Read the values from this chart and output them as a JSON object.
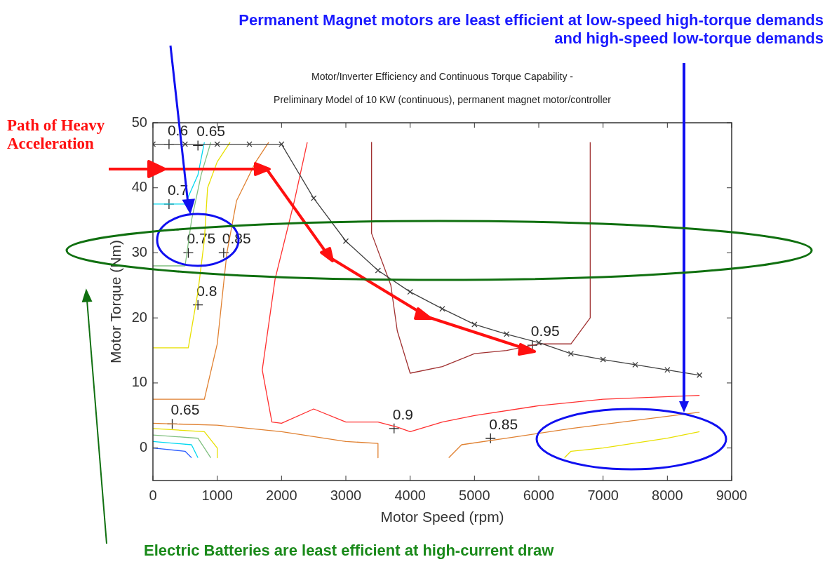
{
  "chart_data": {
    "type": "line",
    "title": "Motor/Inverter Efficiency and Continuous Torque Capability -\nPreliminary Model of 10 KW (continuous), permanent magnet motor/controller",
    "xlabel": "Motor Speed (rpm)",
    "ylabel": "Motor Torque (Nm)",
    "xlim": [
      0,
      9000
    ],
    "xticks": [
      0,
      1000,
      2000,
      3000,
      4000,
      5000,
      6000,
      7000,
      8000,
      9000
    ],
    "ylim": [
      -5,
      50
    ],
    "yticks": [
      0,
      10,
      20,
      30,
      40,
      50
    ],
    "grid": false,
    "legend": false,
    "series": [
      {
        "color": "#404040",
        "marker": "cross",
        "x": [
          0,
          500,
          1000,
          1500,
          2000,
          2500,
          3000,
          3500,
          4000,
          4500,
          5000,
          5500,
          6000,
          6500,
          7000,
          7500,
          8000,
          8500
        ],
        "values": [
          46.7,
          46.7,
          46.7,
          46.7,
          46.7,
          38.4,
          31.8,
          27.3,
          24,
          21.4,
          19,
          17.5,
          16.2,
          14.5,
          13.6,
          12.8,
          12,
          11.2
        ]
      },
      {
        "color": "#00d8f0",
        "x": [
          0,
          500,
          700,
          800
        ],
        "values": [
          37.5,
          37.5,
          42,
          47
        ]
      },
      {
        "color": "#80c080",
        "x": [
          0,
          500,
          600,
          750,
          900
        ],
        "values": [
          28,
          28,
          35,
          42,
          47
        ]
      },
      {
        "color": "#e8e000",
        "x": [
          0,
          550,
          700,
          800,
          850,
          1000,
          1200
        ],
        "values": [
          15.4,
          15.4,
          24,
          32,
          40,
          44,
          47
        ]
      },
      {
        "color": "#e08030",
        "x": [
          0,
          800,
          1000,
          1150,
          1300,
          1600,
          1800
        ],
        "values": [
          7.5,
          7.5,
          16,
          30,
          38,
          44,
          47
        ]
      },
      {
        "color": "#ff3030",
        "x": [
          2400,
          2200,
          1900,
          1700,
          1850,
          2000,
          2500,
          3000,
          3500,
          3800,
          4000,
          4500,
          5000,
          6000,
          7000,
          8500
        ],
        "values": [
          47,
          38,
          26,
          12,
          4,
          3.8,
          6,
          4,
          4,
          3.2,
          2.5,
          4,
          5,
          6.5,
          7.5,
          8.1
        ]
      },
      {
        "color": "#a03030",
        "x": [
          3400,
          3400,
          3700,
          3800,
          4000,
          4500,
          5000,
          5500,
          6000,
          6500,
          6800,
          6800
        ],
        "values": [
          47,
          33,
          25,
          18,
          11.5,
          12.5,
          14.5,
          15,
          16,
          16,
          20,
          47
        ]
      },
      {
        "color": "#e08030",
        "x": [
          0,
          1000,
          2000,
          3000,
          3500,
          3500
        ],
        "values": [
          3.8,
          3.5,
          2.5,
          1,
          0.7,
          -1.5
        ]
      },
      {
        "color": "#e08030",
        "x": [
          4600,
          4800,
          5500,
          6500,
          8500
        ],
        "values": [
          -1.5,
          0.5,
          1.5,
          3,
          5.5
        ]
      },
      {
        "color": "#e8e000",
        "x": [
          0,
          800,
          1000,
          1000
        ],
        "values": [
          3,
          2.5,
          0,
          -1.5
        ]
      },
      {
        "color": "#e8e000",
        "x": [
          6400,
          6500,
          7000,
          8000,
          8500
        ],
        "values": [
          -1.5,
          -0.5,
          0,
          1.5,
          2.5
        ]
      },
      {
        "color": "#80c080",
        "x": [
          0,
          700,
          900
        ],
        "values": [
          2,
          1.5,
          -1.5
        ]
      },
      {
        "color": "#00d8f0",
        "x": [
          0,
          600,
          700
        ],
        "values": [
          1,
          0.5,
          -1.5
        ]
      },
      {
        "color": "#3060ff",
        "x": [
          0,
          500,
          600
        ],
        "values": [
          0,
          -0.5,
          -1.5
        ]
      }
    ],
    "annotations": [
      "Path of Heavy\nAcceleration",
      "Permanent Magnet motors are least efficient at low-speed high-torque demands\nand high-speed low-torque demands",
      "Electric Batteries are least efficient at high-current draw",
      {
        "text": "0.6",
        "x": 250,
        "y": 46.7
      },
      {
        "text": "0.65",
        "x": 700,
        "y": 46.5
      },
      {
        "text": "0.7",
        "x": 250,
        "y": 37.5
      },
      {
        "text": "0.75",
        "x": 550,
        "y": 30
      },
      {
        "text": "0.85",
        "x": 1100,
        "y": 30
      },
      {
        "text": "0.8",
        "x": 700,
        "y": 22
      },
      {
        "text": "0.65",
        "x": 300,
        "y": 3.7
      },
      {
        "text": "0.9",
        "x": 3750,
        "y": 3
      },
      {
        "text": "0.85",
        "x": 5250,
        "y": 1.5
      },
      {
        "text": "0.95",
        "x": 5900,
        "y": 15.8
      }
    ]
  }
}
